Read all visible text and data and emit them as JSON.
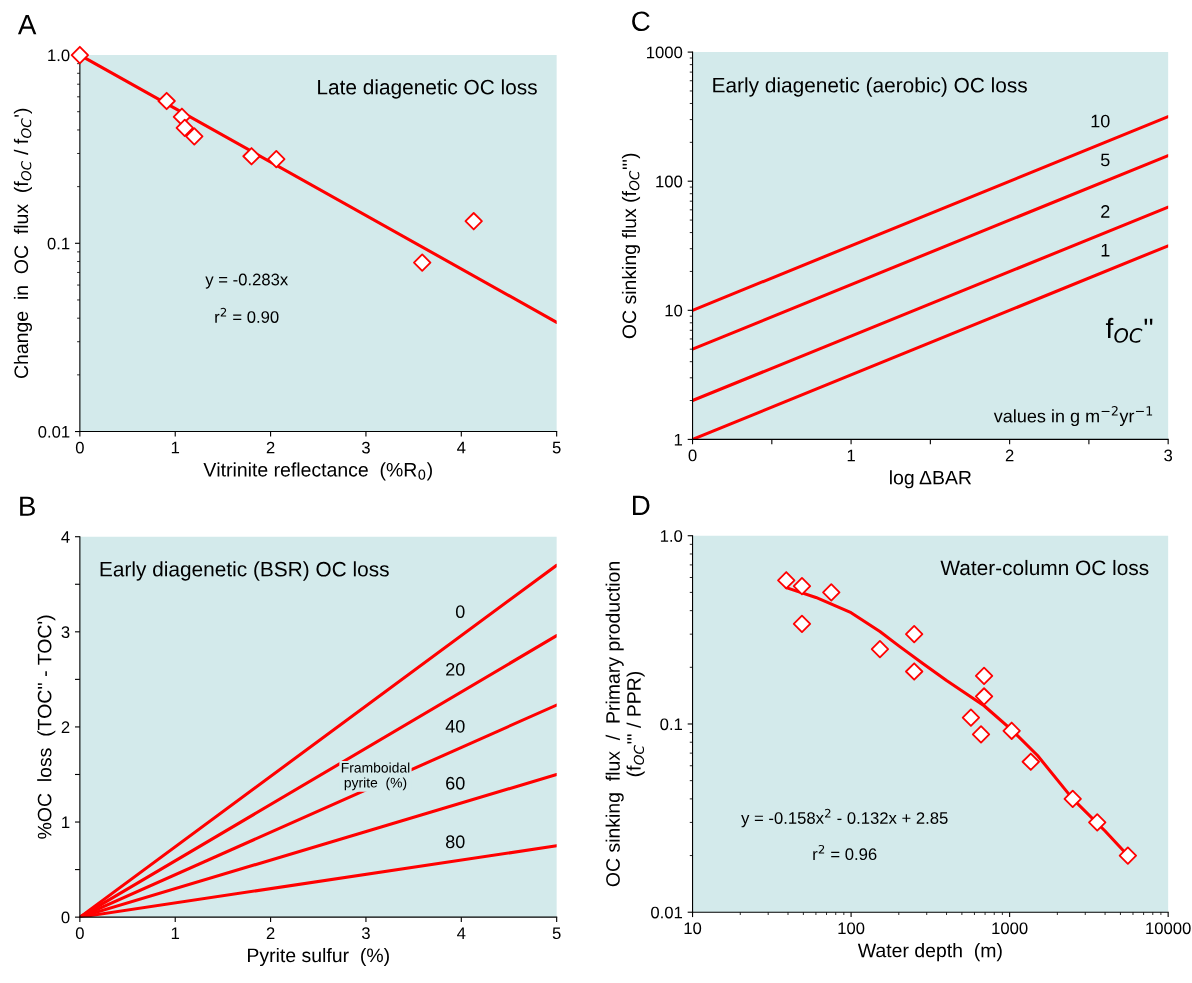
{
  "chart_data": [
    {
      "type": "scatter",
      "title": "A",
      "subtitle": "Late diagenetic OC loss",
      "xlabel": "Vitrinite reflectance  (%R$_{0}$)",
      "ylabel": "Change  in  OC  flux  (f$_{OC}$ / f$_{OC}$')",
      "log": "y",
      "xlim": [
        0,
        5
      ],
      "xticks": [
        0,
        1,
        2,
        3,
        4,
        5
      ],
      "ylim": [
        0.01,
        1
      ],
      "yticks": [
        0.01,
        0.1,
        {
          "value": 1,
          "label": "1.0"
        }
      ],
      "annotations": [
        "y = -0.283x",
        "r$^{2}$ = 0.90"
      ],
      "series": [
        {
          "type": "scatter",
          "marker": "diamond",
          "color": "#ff0000",
          "x": [
            0,
            0.91,
            1.07,
            1.1,
            1.2,
            1.8,
            2.06,
            3.59,
            4.13
          ],
          "values": [
            1.0,
            0.57,
            0.47,
            0.41,
            0.37,
            0.29,
            0.28,
            0.079,
            0.131
          ]
        },
        {
          "type": "line",
          "marker": "none",
          "color": "#ff0000",
          "x": [
            0,
            5
          ],
          "values": [
            1.0,
            0.038
          ]
        }
      ]
    },
    {
      "type": "line",
      "title": "B",
      "subtitle": "Early diagenetic (BSR) OC loss",
      "xlabel": "Pyrite sulfur  (%)",
      "ylabel": "%OC  loss  (TOC'' - TOC')",
      "xlim": [
        0,
        5
      ],
      "xticks": [
        0,
        1,
        2,
        3,
        4,
        5
      ],
      "ylim": [
        0,
        4
      ],
      "yticks": [
        0,
        {
          "value": 0.5,
          "label": null
        },
        1,
        {
          "value": 1.5,
          "label": null
        },
        2,
        {
          "value": 2.5,
          "label": null
        },
        3,
        {
          "value": 3.5,
          "label": null
        },
        4
      ],
      "annotations": [
        "Framboidal\npyrite  (%)"
      ],
      "series": [
        {
          "name": "0",
          "color": "#ff0000",
          "x": [
            0,
            5
          ],
          "values": [
            0,
            3.7
          ]
        },
        {
          "name": "20",
          "color": "#ff0000",
          "x": [
            0,
            5
          ],
          "values": [
            0,
            2.96
          ]
        },
        {
          "name": "40",
          "color": "#ff0000",
          "x": [
            0,
            5
          ],
          "values": [
            0,
            2.23
          ]
        },
        {
          "name": "60",
          "color": "#ff0000",
          "x": [
            0,
            5
          ],
          "values": [
            0,
            1.5
          ]
        },
        {
          "name": "80",
          "color": "#ff0000",
          "x": [
            0,
            5
          ],
          "values": [
            0,
            0.75
          ]
        }
      ]
    },
    {
      "type": "line",
      "title": "C",
      "subtitle": "Early diagenetic (aerobic) OC loss",
      "xlabel": "log ΔBAR",
      "ylabel": "OC sinking flux (f$_{OC}$''')",
      "log": "y",
      "xlim": [
        0,
        3
      ],
      "xticks": [
        0,
        {
          "value": 0.5,
          "label": null
        },
        1,
        {
          "value": 1.5,
          "label": null
        },
        2,
        {
          "value": 2.5,
          "label": null
        },
        3
      ],
      "ylim": [
        1,
        1000
      ],
      "yticks": [
        1,
        10,
        100,
        1000
      ],
      "annotations": [
        "f$_{OC}$''",
        "values in g m$^{−2}$yr$^{−1}$"
      ],
      "series": [
        {
          "name": "10",
          "color": "#ff0000",
          "x": [
            0,
            3
          ],
          "values": [
            10,
            316
          ]
        },
        {
          "name": "5",
          "color": "#ff0000",
          "x": [
            0,
            3
          ],
          "values": [
            5,
            158
          ]
        },
        {
          "name": "2",
          "color": "#ff0000",
          "x": [
            0,
            3
          ],
          "values": [
            2,
            63
          ]
        },
        {
          "name": "1",
          "color": "#ff0000",
          "x": [
            0,
            3
          ],
          "values": [
            1,
            31.6
          ]
        }
      ]
    },
    {
      "type": "scatter",
      "title": "D",
      "subtitle": "Water-column OC loss",
      "xlabel": "Water depth  (m)",
      "ylabel": "OC sinking  flux  /  Primary production\n(f$_{OC}$''' / PPR)",
      "log": "xy",
      "xlim": [
        10,
        10000
      ],
      "xticks": [
        10,
        100,
        1000,
        10000
      ],
      "ylim": [
        0.01,
        1
      ],
      "yticks": [
        0.01,
        0.1,
        {
          "value": 1,
          "label": "1.0"
        }
      ],
      "annotations": [
        "y = -0.158x$^{2}$ - 0.132x + 2.85",
        "r$^{2}$ = 0.96"
      ],
      "series": [
        {
          "type": "scatter",
          "marker": "diamond",
          "color": "#ff0000",
          "x": [
            39,
            49,
            49,
            75,
            152,
            250,
            250,
            690,
            690,
            570,
            660,
            1030,
            1360,
            2500,
            3570,
            5570
          ],
          "values": [
            0.58,
            0.54,
            0.34,
            0.5,
            0.25,
            0.3,
            0.19,
            0.18,
            0.14,
            0.108,
            0.088,
            0.092,
            0.063,
            0.04,
            0.03,
            0.02
          ]
        },
        {
          "type": "line",
          "marker": "none",
          "color": "#ff0000",
          "x": [
            39,
            60,
            100,
            152,
            200,
            282,
            400,
            690,
            1030,
            1500,
            2500,
            4000,
            5570
          ],
          "values": [
            0.53,
            0.47,
            0.39,
            0.31,
            0.26,
            0.21,
            0.17,
            0.125,
            0.093,
            0.068,
            0.04,
            0.027,
            0.02
          ]
        }
      ]
    }
  ]
}
